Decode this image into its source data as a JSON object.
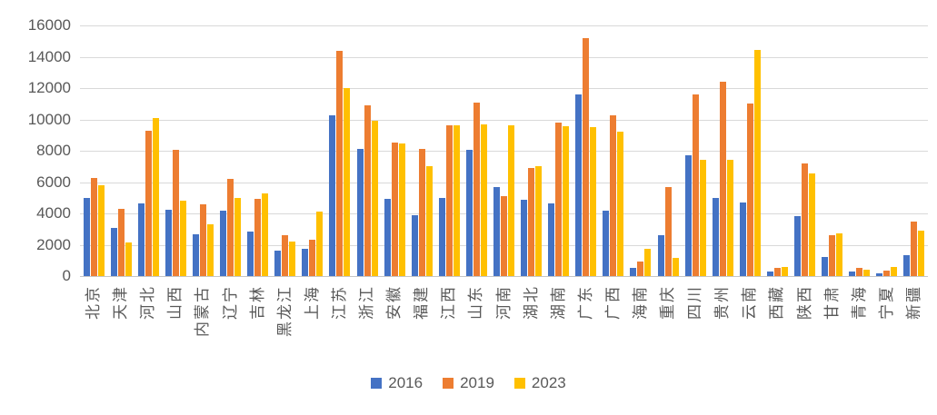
{
  "chart_data": {
    "type": "bar",
    "title": "",
    "categories": [
      "北京",
      "天津",
      "河北",
      "山西",
      "内蒙古",
      "辽宁",
      "吉林",
      "黑龙江",
      "上海",
      "江苏",
      "浙江",
      "安徽",
      "福建",
      "江西",
      "山东",
      "河南",
      "湖北",
      "湖南",
      "广东",
      "广西",
      "海南",
      "重庆",
      "四川",
      "贵州",
      "云南",
      "西藏",
      "陕西",
      "甘肃",
      "青海",
      "宁夏",
      "新疆"
    ],
    "series": [
      {
        "name": "2016",
        "color": "#4472C4",
        "values": [
          5000,
          3100,
          4650,
          4250,
          2650,
          4200,
          2850,
          1600,
          1750,
          10250,
          8100,
          4900,
          3900,
          5000,
          8050,
          5700,
          4850,
          4650,
          11600,
          4200,
          550,
          2600,
          7700,
          5000,
          4700,
          300,
          3800,
          1200,
          300,
          200,
          1350
        ]
      },
      {
        "name": "2019",
        "color": "#ED7D31",
        "values": [
          6250,
          4300,
          9300,
          8050,
          4600,
          6200,
          4900,
          2600,
          2300,
          14400,
          10900,
          8500,
          8100,
          9600,
          11100,
          5100,
          6900,
          9800,
          15200,
          10250,
          950,
          5700,
          11600,
          12400,
          11000,
          500,
          7200,
          2600,
          500,
          350,
          3500
        ]
      },
      {
        "name": "2023",
        "color": "#FFC000",
        "values": [
          5800,
          2150,
          10100,
          4800,
          3300,
          5000,
          5250,
          2200,
          4100,
          12000,
          9900,
          8450,
          7000,
          9650,
          9700,
          9650,
          7000,
          9550,
          9500,
          9200,
          1750,
          1150,
          7400,
          7400,
          14450,
          600,
          6550,
          2700,
          400,
          600,
          2900
        ]
      }
    ],
    "xlabel": "",
    "ylabel": "",
    "ylim": [
      0,
      16000
    ],
    "y_ticks": [
      0,
      2000,
      4000,
      6000,
      8000,
      10000,
      12000,
      14000,
      16000
    ],
    "y_tick_labels": [
      "0",
      "2000",
      "4000",
      "6000",
      "8000",
      "10000",
      "12000",
      "14000",
      "16000"
    ],
    "grid": true,
    "legend_position": "bottom",
    "axis_text_color": "#595959",
    "gridline_color": "#D9D9D9",
    "x_label_rotation": -90
  }
}
